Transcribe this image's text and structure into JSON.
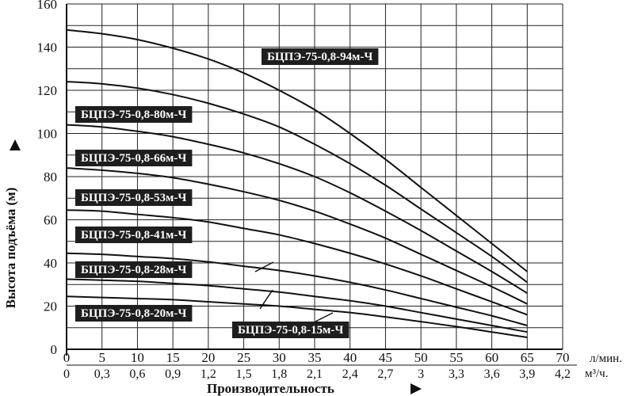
{
  "chart_data": {
    "type": "line",
    "x": [
      0,
      5,
      10,
      15,
      20,
      25,
      30,
      35,
      40,
      45,
      50,
      55,
      60,
      65
    ],
    "xlim": [
      0,
      70
    ],
    "ylim": [
      0,
      160
    ],
    "x_ticks": [
      "0",
      "5",
      "10",
      "15",
      "20",
      "25",
      "30",
      "35",
      "40",
      "45",
      "50",
      "55",
      "60",
      "65",
      "70"
    ],
    "x2_ticks": [
      "0",
      "0,3",
      "0,6",
      "0,9",
      "1,2",
      "1,5",
      "1,8",
      "2,1",
      "2,4",
      "2,7",
      "3",
      "3,3",
      "3,6",
      "3,9",
      "4,2"
    ],
    "y_ticks": [
      "0",
      "20",
      "40",
      "60",
      "80",
      "100",
      "120",
      "140",
      "160"
    ],
    "x_unit": "л/мин.",
    "x2_unit": "м³/ч.",
    "xlabel": "Производительность",
    "ylabel": "Высота подъёма (м)",
    "grid": true,
    "series": [
      {
        "name": "БЦПЭ-75-0,8-94м-Ч",
        "values": [
          148,
          146.2,
          143.5,
          139.5,
          134.5,
          128,
          120,
          111,
          100,
          88,
          75,
          62,
          49,
          36
        ]
      },
      {
        "name": "БЦПЭ-75-0,8-80м-Ч",
        "values": [
          124,
          123,
          121,
          118,
          114,
          109,
          103,
          95,
          86,
          76,
          65,
          54,
          43,
          31
        ]
      },
      {
        "name": "БЦПЭ-75-0,8-66м-Ч",
        "values": [
          104,
          103,
          101,
          98.5,
          95,
          91,
          86,
          80,
          72.5,
          64,
          55,
          45.5,
          36,
          26
        ]
      },
      {
        "name": "БЦПЭ-75-0,8-53м-Ч",
        "values": [
          84,
          83,
          81.5,
          79.5,
          76.5,
          73,
          69,
          64,
          58,
          51.5,
          44,
          36.5,
          29,
          21
        ]
      },
      {
        "name": "БЦПЭ-75-0,8-41м-Ч",
        "values": [
          64.5,
          64,
          62.5,
          61,
          59,
          56,
          53,
          49,
          44.5,
          39.5,
          34,
          28,
          22,
          16
        ]
      },
      {
        "name": "БЦПЭ-75-0,8-28м-Ч",
        "values": [
          44.5,
          44,
          43,
          42,
          40.5,
          38.5,
          36.5,
          34,
          31,
          27.5,
          23.5,
          19.5,
          15.5,
          11
        ]
      },
      {
        "name": "БЦПЭ-75-0,8-20м-Ч",
        "values": [
          32.5,
          32,
          31.5,
          30.5,
          29.5,
          28,
          26.5,
          24.5,
          22.5,
          20,
          17,
          14,
          11,
          8
        ]
      },
      {
        "name": "БЦПЭ-75-0,8-15м-Ч",
        "values": [
          24.5,
          24,
          23.5,
          23,
          22,
          21,
          20,
          18.5,
          17,
          15,
          12.8,
          10.5,
          8,
          5.5
        ]
      }
    ]
  }
}
